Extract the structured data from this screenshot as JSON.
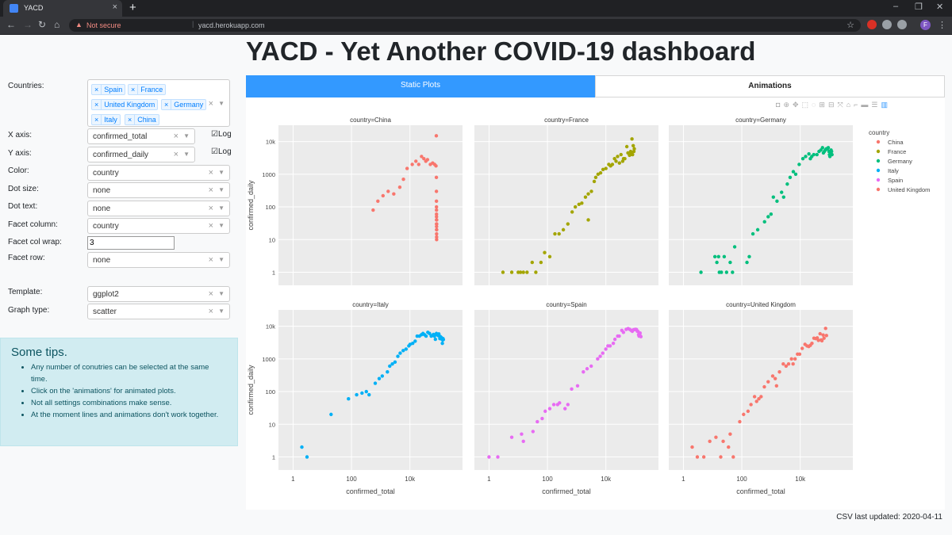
{
  "browser": {
    "tab_title": "YACD",
    "tab_close": "×",
    "new_tab": "+",
    "security": "Not secure",
    "url": "yacd.herokuapp.com",
    "profile_initial": "F",
    "window_controls": [
      "–",
      "❐",
      "✕"
    ]
  },
  "page": {
    "title": "YACD - Yet Another COVID-19 dashboard"
  },
  "controls": {
    "countries_label": "Countries:",
    "countries": [
      "Spain",
      "France",
      "United Kingdom",
      "Germany",
      "Italy",
      "China"
    ],
    "x_axis_label": "X axis:",
    "x_axis_value": "confirmed_total",
    "x_log_label": "Log",
    "y_axis_label": "Y axis:",
    "y_axis_value": "confirmed_daily",
    "y_log_label": "Log",
    "color_label": "Color:",
    "color_value": "country",
    "dot_size_label": "Dot size:",
    "dot_size_value": "none",
    "dot_text_label": "Dot text:",
    "dot_text_value": "none",
    "facet_col_label": "Facet column:",
    "facet_col_value": "country",
    "facet_wrap_label": "Facet col wrap:",
    "facet_wrap_value": "3",
    "facet_row_label": "Facet row:",
    "facet_row_value": "none",
    "template_label": "Template:",
    "template_value": "ggplot2",
    "graph_type_label": "Graph type:",
    "graph_type_value": "scatter"
  },
  "tips": {
    "heading": "Some tips.",
    "items": [
      "Any number of conutries can be selected at the same time.",
      "Click on the 'animations' for animated plots.",
      "Not all settings combinations make sense.",
      "At the moment lines and animations don't work together."
    ]
  },
  "tabs": {
    "static": "Static Plots",
    "animations": "Animations"
  },
  "footer": "CSV last updated: 2020-04-11",
  "chart_data": {
    "type": "scatter",
    "xlabel": "confirmed_total",
    "ylabel": "confirmed_daily",
    "x_scale": "log",
    "y_scale": "log",
    "x_ticks": [
      "1",
      "100",
      "10k"
    ],
    "y_ticks": [
      "1",
      "10",
      "100",
      "1000",
      "10k"
    ],
    "legend_title": "country",
    "legend_placement": "right",
    "facet_col_wrap": 3,
    "colors": {
      "China": "#F8766D",
      "France": "#A3A500",
      "Germany": "#00BF7D",
      "Italy": "#00B0F6",
      "Spain": "#E76BF3",
      "United Kingdom": "#F8766D"
    },
    "legend": [
      "China",
      "France",
      "Germany",
      "Italy",
      "Spain",
      "United Kingdom"
    ],
    "facets": [
      {
        "title": "country=China",
        "series": "China",
        "points": [
          [
            550,
            80
          ],
          [
            800,
            150
          ],
          [
            1200,
            220
          ],
          [
            1800,
            300
          ],
          [
            2800,
            250
          ],
          [
            4500,
            400
          ],
          [
            6000,
            700
          ],
          [
            8000,
            1500
          ],
          [
            12000,
            2000
          ],
          [
            16000,
            2500
          ],
          [
            20000,
            2000
          ],
          [
            25000,
            3500
          ],
          [
            30000,
            3000
          ],
          [
            35000,
            2500
          ],
          [
            40000,
            2800
          ],
          [
            50000,
            2000
          ],
          [
            60000,
            2200
          ],
          [
            70000,
            2000
          ],
          [
            78000,
            1800
          ],
          [
            80000,
            15000
          ],
          [
            80500,
            800
          ],
          [
            80800,
            300
          ],
          [
            81000,
            150
          ],
          [
            81100,
            100
          ],
          [
            81200,
            80
          ],
          [
            81300,
            60
          ],
          [
            81400,
            50
          ],
          [
            81500,
            40
          ],
          [
            81600,
            30
          ],
          [
            81700,
            25
          ],
          [
            81800,
            20
          ],
          [
            81900,
            15
          ],
          [
            82000,
            12
          ],
          [
            82100,
            10
          ],
          [
            82200,
            30
          ],
          [
            82300,
            40
          ],
          [
            82400,
            20
          ]
        ]
      },
      {
        "title": "country=France",
        "series": "France",
        "points": [
          [
            3,
            1
          ],
          [
            6,
            1
          ],
          [
            10,
            1
          ],
          [
            12,
            1
          ],
          [
            15,
            1
          ],
          [
            20,
            1
          ],
          [
            30,
            2
          ],
          [
            40,
            1
          ],
          [
            60,
            2
          ],
          [
            80,
            4
          ],
          [
            120,
            3
          ],
          [
            180,
            15
          ],
          [
            250,
            15
          ],
          [
            350,
            20
          ],
          [
            500,
            30
          ],
          [
            700,
            70
          ],
          [
            900,
            100
          ],
          [
            1200,
            120
          ],
          [
            1500,
            130
          ],
          [
            2000,
            200
          ],
          [
            2500,
            250
          ],
          [
            3200,
            300
          ],
          [
            4000,
            600
          ],
          [
            4500,
            800
          ],
          [
            5400,
            1000
          ],
          [
            6600,
            1100
          ],
          [
            8000,
            1400
          ],
          [
            10000,
            1500
          ],
          [
            12600,
            2000
          ],
          [
            14500,
            1800
          ],
          [
            16700,
            2000
          ],
          [
            19800,
            3000
          ],
          [
            22300,
            2500
          ],
          [
            25200,
            3500
          ],
          [
            29100,
            2200
          ],
          [
            32900,
            4000
          ],
          [
            37600,
            2500
          ],
          [
            40200,
            3000
          ],
          [
            44500,
            3000
          ],
          [
            52100,
            7000
          ],
          [
            56900,
            4500
          ],
          [
            64300,
            3800
          ],
          [
            68600,
            4000
          ],
          [
            70500,
            5000
          ],
          [
            74400,
            4300
          ],
          [
            78200,
            12000
          ],
          [
            82000,
            4000
          ],
          [
            86300,
            7500
          ],
          [
            90800,
            5000
          ],
          [
            93800,
            6000
          ],
          [
            2500,
            40
          ]
        ]
      },
      {
        "title": "country=Germany",
        "series": "Germany",
        "points": [
          [
            4,
            1
          ],
          [
            12,
            3
          ],
          [
            14,
            2
          ],
          [
            16,
            3
          ],
          [
            17,
            1
          ],
          [
            20,
            1
          ],
          [
            25,
            3
          ],
          [
            30,
            1
          ],
          [
            40,
            2
          ],
          [
            48,
            1
          ],
          [
            57,
            6
          ],
          [
            150,
            2
          ],
          [
            180,
            3
          ],
          [
            240,
            15
          ],
          [
            350,
            20
          ],
          [
            600,
            35
          ],
          [
            800,
            50
          ],
          [
            1000,
            60
          ],
          [
            1200,
            200
          ],
          [
            1600,
            150
          ],
          [
            2300,
            280
          ],
          [
            2700,
            200
          ],
          [
            3600,
            500
          ],
          [
            4500,
            800
          ],
          [
            5800,
            1200
          ],
          [
            7000,
            1000
          ],
          [
            9200,
            2000
          ],
          [
            12300,
            3000
          ],
          [
            15300,
            3500
          ],
          [
            19800,
            4200
          ],
          [
            22200,
            3000
          ],
          [
            24800,
            3500
          ],
          [
            29000,
            4000
          ],
          [
            37300,
            4000
          ],
          [
            43900,
            5000
          ],
          [
            50900,
            5500
          ],
          [
            57700,
            6500
          ],
          [
            62100,
            4500
          ],
          [
            66900,
            5000
          ],
          [
            71800,
            5500
          ],
          [
            77900,
            6000
          ],
          [
            84800,
            6000
          ],
          [
            91100,
            6500
          ],
          [
            96100,
            5000
          ],
          [
            100100,
            4000
          ],
          [
            103400,
            3500
          ],
          [
            107700,
            4500
          ],
          [
            113300,
            5500
          ],
          [
            118200,
            5000
          ],
          [
            122100,
            4000
          ]
        ]
      },
      {
        "title": "country=Italy",
        "series": "Italy",
        "points": [
          [
            2,
            2
          ],
          [
            3,
            1
          ],
          [
            20,
            20
          ],
          [
            79,
            60
          ],
          [
            150,
            80
          ],
          [
            229,
            90
          ],
          [
            322,
            100
          ],
          [
            400,
            80
          ],
          [
            650,
            180
          ],
          [
            888,
            250
          ],
          [
            1128,
            300
          ],
          [
            1694,
            400
          ],
          [
            2036,
            600
          ],
          [
            2502,
            700
          ],
          [
            3089,
            800
          ],
          [
            3858,
            1200
          ],
          [
            4636,
            1500
          ],
          [
            5883,
            1800
          ],
          [
            7375,
            2000
          ],
          [
            9172,
            2500
          ],
          [
            10149,
            2800
          ],
          [
            12462,
            3000
          ],
          [
            15113,
            3500
          ],
          [
            17660,
            5000
          ],
          [
            21157,
            5000
          ],
          [
            24747,
            5500
          ],
          [
            27980,
            6000
          ],
          [
            31506,
            5500
          ],
          [
            35713,
            5000
          ],
          [
            41035,
            6500
          ],
          [
            47021,
            6000
          ],
          [
            53578,
            5000
          ],
          [
            59138,
            5200
          ],
          [
            63927,
            5600
          ],
          [
            69176,
            5000
          ],
          [
            74386,
            4000
          ],
          [
            80589,
            6000
          ],
          [
            86498,
            5500
          ],
          [
            92472,
            5200
          ],
          [
            97689,
            5800
          ],
          [
            101739,
            5000
          ],
          [
            105792,
            4200
          ],
          [
            110574,
            4800
          ],
          [
            115242,
            4600
          ],
          [
            119827,
            4500
          ],
          [
            124632,
            4000
          ],
          [
            128948,
            3000
          ],
          [
            132547,
            3800
          ],
          [
            135586,
            4200
          ],
          [
            139422,
            3900
          ]
        ]
      },
      {
        "title": "country=Spain",
        "series": "Spain",
        "points": [
          [
            1,
            1
          ],
          [
            2,
            1
          ],
          [
            6,
            4
          ],
          [
            13,
            5
          ],
          [
            15,
            3
          ],
          [
            32,
            6
          ],
          [
            45,
            12
          ],
          [
            66,
            15
          ],
          [
            84,
            25
          ],
          [
            120,
            30
          ],
          [
            165,
            40
          ],
          [
            222,
            40
          ],
          [
            259,
            45
          ],
          [
            400,
            30
          ],
          [
            500,
            40
          ],
          [
            673,
            120
          ],
          [
            1073,
            150
          ],
          [
            1695,
            400
          ],
          [
            2277,
            500
          ],
          [
            3146,
            600
          ],
          [
            5232,
            1000
          ],
          [
            6391,
            1200
          ],
          [
            7798,
            1500
          ],
          [
            9942,
            2000
          ],
          [
            11748,
            2500
          ],
          [
            13910,
            2500
          ],
          [
            17963,
            3000
          ],
          [
            20410,
            4000
          ],
          [
            25374,
            5000
          ],
          [
            28603,
            5000
          ],
          [
            35136,
            7500
          ],
          [
            39885,
            6500
          ],
          [
            49515,
            8000
          ],
          [
            57786,
            8500
          ],
          [
            65719,
            8000
          ],
          [
            73235,
            7500
          ],
          [
            80110,
            7000
          ],
          [
            87956,
            7800
          ],
          [
            95923,
            7900
          ],
          [
            104118,
            8000
          ],
          [
            112065,
            7900
          ],
          [
            119199,
            7000
          ],
          [
            126168,
            6900
          ],
          [
            131646,
            5500
          ],
          [
            136675,
            5000
          ],
          [
            141942,
            5200
          ],
          [
            148220,
            6200
          ],
          [
            153222,
            5000
          ],
          [
            158273,
            4800
          ]
        ]
      },
      {
        "title": "country=United Kingdom",
        "series": "United Kingdom",
        "points": [
          [
            2,
            2
          ],
          [
            3,
            1
          ],
          [
            5,
            1
          ],
          [
            8,
            3
          ],
          [
            13,
            4
          ],
          [
            19,
            1
          ],
          [
            23,
            3
          ],
          [
            35,
            2
          ],
          [
            40,
            5
          ],
          [
            51,
            1
          ],
          [
            85,
            12
          ],
          [
            115,
            20
          ],
          [
            163,
            25
          ],
          [
            206,
            40
          ],
          [
            273,
            70
          ],
          [
            321,
            50
          ],
          [
            382,
            60
          ],
          [
            456,
            70
          ],
          [
            590,
            140
          ],
          [
            798,
            200
          ],
          [
            1140,
            300
          ],
          [
            1391,
            250
          ],
          [
            1543,
            150
          ],
          [
            1950,
            400
          ],
          [
            2626,
            700
          ],
          [
            3269,
            600
          ],
          [
            3983,
            700
          ],
          [
            5018,
            1000
          ],
          [
            5683,
            700
          ],
          [
            6650,
            1000
          ],
          [
            8077,
            1400
          ],
          [
            9529,
            1400
          ],
          [
            11658,
            2100
          ],
          [
            14543,
            2800
          ],
          [
            17089,
            2500
          ],
          [
            19522,
            2400
          ],
          [
            22141,
            2600
          ],
          [
            25150,
            3000
          ],
          [
            29474,
            4300
          ],
          [
            33718,
            4200
          ],
          [
            38168,
            4400
          ],
          [
            41903,
            3700
          ],
          [
            47806,
            5900
          ],
          [
            51608,
            3800
          ],
          [
            55242,
            3600
          ],
          [
            60733,
            5400
          ],
          [
            65077,
            4300
          ],
          [
            73758,
            8600
          ],
          [
            78991,
            5200
          ]
        ]
      }
    ]
  }
}
